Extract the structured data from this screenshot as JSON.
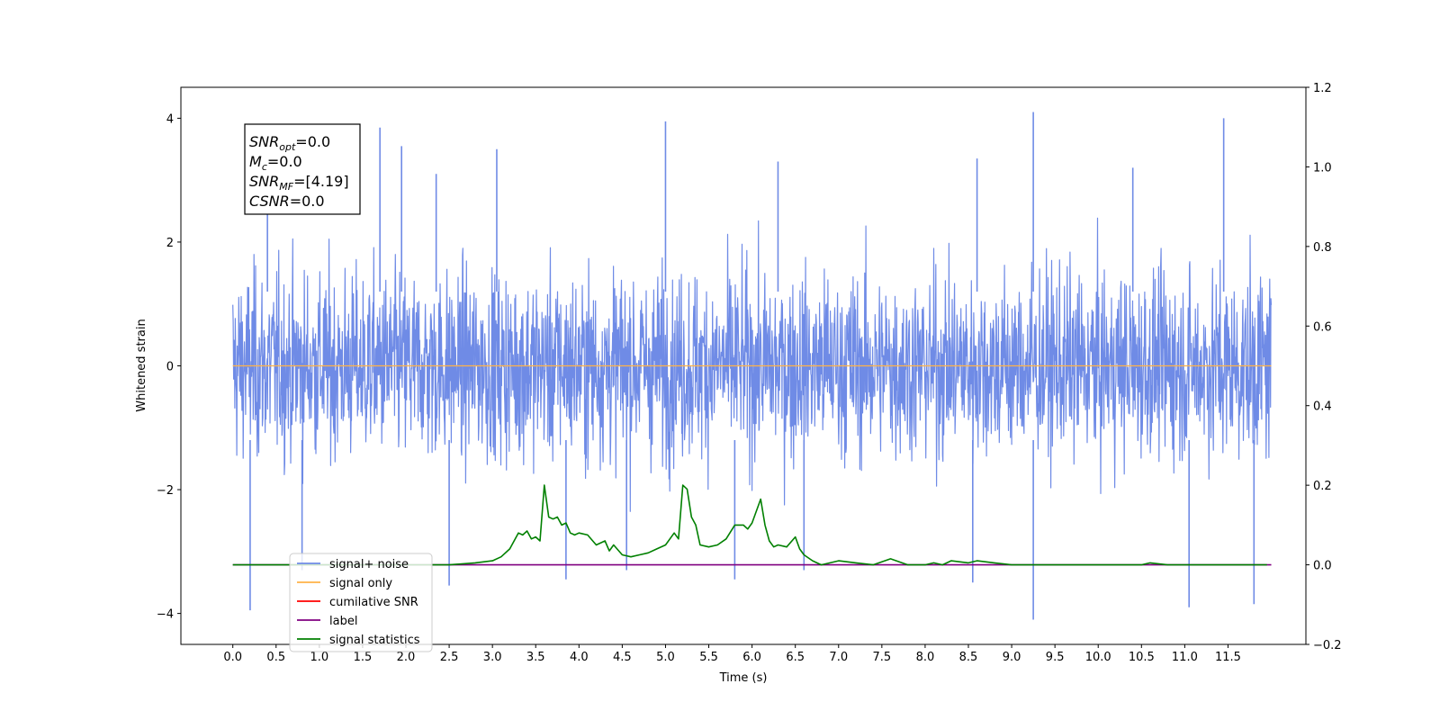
{
  "chart_data": {
    "type": "line",
    "title": "",
    "xlabel": "Time (s)",
    "ylabel": "Whitened strain",
    "xlim": [
      -0.6,
      12.4
    ],
    "ylim": [
      -4.5,
      4.5
    ],
    "ylim_right": [
      -0.2,
      1.2
    ],
    "x_ticks": [
      "0.0",
      "0.5",
      "1.0",
      "1.5",
      "2.0",
      "2.5",
      "3.0",
      "3.5",
      "4.0",
      "4.5",
      "5.0",
      "5.5",
      "6.0",
      "6.5",
      "7.0",
      "7.5",
      "8.0",
      "8.5",
      "9.0",
      "9.5",
      "10.0",
      "10.5",
      "11.0",
      "11.5"
    ],
    "y_ticks_left": [
      "−4",
      "−2",
      "0",
      "2",
      "4"
    ],
    "y_ticks_right": [
      "−0.2",
      "0.0",
      "0.2",
      "0.4",
      "0.6",
      "0.8",
      "1.0",
      "1.2"
    ],
    "grid": false,
    "legend_position": "lower-left",
    "annotation": {
      "lines": [
        {
          "base": "SNR",
          "sub": "opt",
          "rest": "=0.0"
        },
        {
          "base": "M",
          "sub": "c",
          "rest": "=0.0"
        },
        {
          "base": "SNR",
          "sub": "MF",
          "rest": "=[4.19]"
        },
        {
          "base": "CSNR",
          "sub": "",
          "rest": "=0.0"
        }
      ]
    },
    "series": [
      {
        "name": "signal+ noise",
        "axis": "left",
        "color": "#6f8be6",
        "x_range": [
          0.0,
          12.0
        ],
        "typical_amplitude": [
          -2.6,
          2.6
        ],
        "spikes": [
          {
            "x": 0.2,
            "y": -3.95
          },
          {
            "x": 0.4,
            "y": 3.2
          },
          {
            "x": 0.8,
            "y": -3.3
          },
          {
            "x": 1.7,
            "y": 3.85
          },
          {
            "x": 1.95,
            "y": 3.55
          },
          {
            "x": 2.35,
            "y": 3.1
          },
          {
            "x": 2.5,
            "y": -3.55
          },
          {
            "x": 3.05,
            "y": 3.5
          },
          {
            "x": 3.85,
            "y": -3.45
          },
          {
            "x": 4.55,
            "y": -3.3
          },
          {
            "x": 5.0,
            "y": 3.95
          },
          {
            "x": 5.8,
            "y": -3.45
          },
          {
            "x": 6.3,
            "y": 3.3
          },
          {
            "x": 6.6,
            "y": -3.3
          },
          {
            "x": 8.55,
            "y": -3.5
          },
          {
            "x": 8.6,
            "y": 3.35
          },
          {
            "x": 9.25,
            "y": 4.1
          },
          {
            "x": 9.25,
            "y": -4.1
          },
          {
            "x": 10.4,
            "y": 3.2
          },
          {
            "x": 11.05,
            "y": -3.9
          },
          {
            "x": 11.45,
            "y": 4.0
          },
          {
            "x": 11.8,
            "y": -3.85
          }
        ]
      },
      {
        "name": "signal only",
        "axis": "left",
        "color": "#ffb347",
        "x": [
          0.0,
          12.0
        ],
        "y": [
          0.0,
          0.0
        ]
      },
      {
        "name": "cumilative SNR",
        "axis": "left",
        "color": "#ff0000",
        "x": [],
        "y": []
      },
      {
        "name": "label",
        "axis": "right",
        "color": "#800080",
        "x": [
          0.0,
          12.0
        ],
        "y": [
          0.0,
          0.0
        ]
      },
      {
        "name": "signal statistics",
        "axis": "right",
        "color": "#008000",
        "x": [
          0.0,
          2.5,
          2.8,
          3.0,
          3.1,
          3.2,
          3.3,
          3.35,
          3.4,
          3.45,
          3.5,
          3.55,
          3.6,
          3.65,
          3.7,
          3.75,
          3.8,
          3.85,
          3.9,
          3.95,
          4.0,
          4.1,
          4.2,
          4.3,
          4.35,
          4.4,
          4.5,
          4.6,
          4.7,
          4.8,
          4.9,
          5.0,
          5.1,
          5.15,
          5.2,
          5.25,
          5.3,
          5.35,
          5.4,
          5.5,
          5.6,
          5.7,
          5.8,
          5.9,
          5.95,
          6.0,
          6.1,
          6.15,
          6.2,
          6.25,
          6.3,
          6.4,
          6.5,
          6.55,
          6.6,
          6.7,
          6.8,
          6.9,
          7.0,
          7.2,
          7.4,
          7.6,
          7.8,
          8.0,
          8.1,
          8.2,
          8.3,
          8.5,
          8.6,
          8.8,
          9.0,
          9.5,
          10.0,
          10.5,
          10.6,
          10.8,
          11.0,
          11.5,
          11.95
        ],
        "y": [
          0.0,
          0.0,
          0.005,
          0.01,
          0.02,
          0.04,
          0.08,
          0.075,
          0.085,
          0.065,
          0.07,
          0.06,
          0.2,
          0.12,
          0.115,
          0.12,
          0.1,
          0.105,
          0.08,
          0.075,
          0.08,
          0.075,
          0.05,
          0.06,
          0.035,
          0.05,
          0.025,
          0.02,
          0.025,
          0.03,
          0.04,
          0.05,
          0.08,
          0.065,
          0.2,
          0.19,
          0.12,
          0.1,
          0.05,
          0.045,
          0.05,
          0.065,
          0.1,
          0.1,
          0.09,
          0.105,
          0.165,
          0.1,
          0.06,
          0.045,
          0.05,
          0.045,
          0.07,
          0.04,
          0.025,
          0.01,
          0.0,
          0.005,
          0.01,
          0.005,
          0.0,
          0.015,
          0.0,
          0.0,
          0.005,
          0.0,
          0.01,
          0.005,
          0.01,
          0.005,
          0.0,
          0.0,
          0.0,
          0.0,
          0.005,
          0.0,
          0.0,
          0.0,
          0.0
        ]
      }
    ]
  }
}
